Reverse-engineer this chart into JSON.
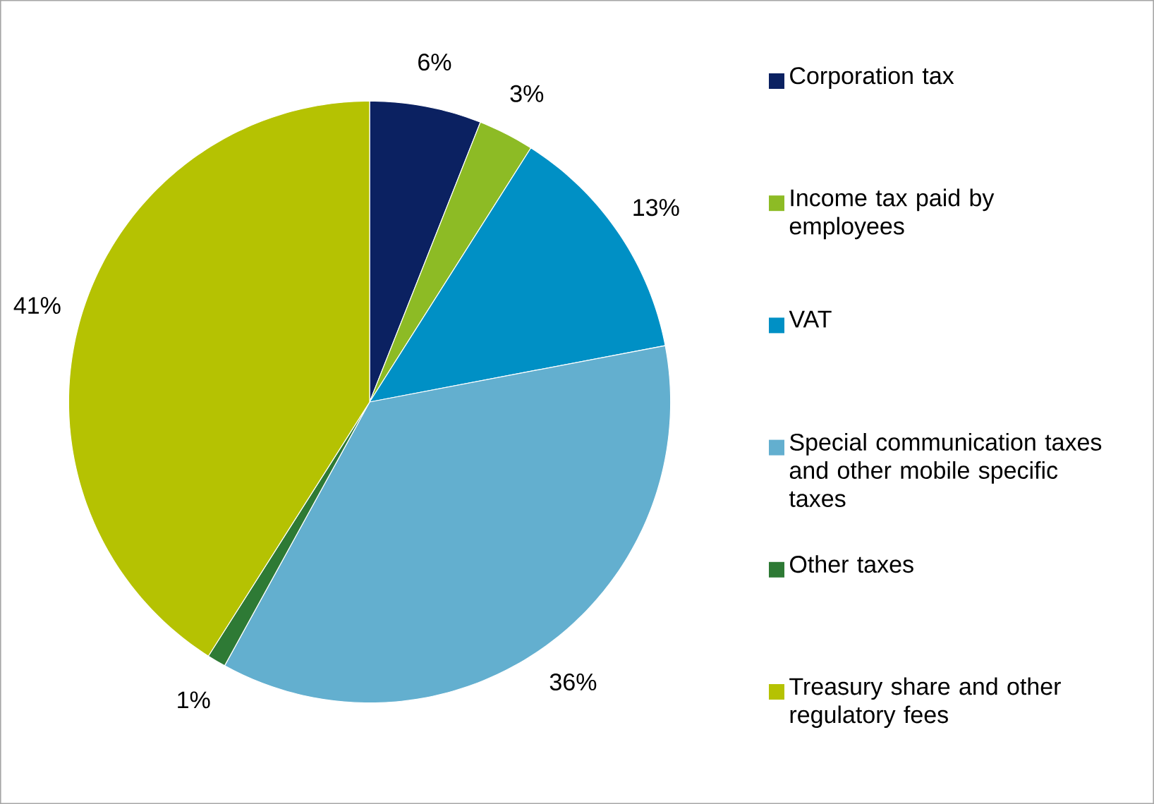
{
  "chart_data": {
    "type": "pie",
    "categories": [
      "Corporation tax",
      "Income tax paid by employees",
      "VAT",
      "Special communication taxes and other mobile specific taxes",
      "Other taxes",
      "Treasury share and other regulatory fees"
    ],
    "values": [
      6,
      3,
      13,
      36,
      1,
      41
    ],
    "value_labels": [
      "6%",
      "3%",
      "13%",
      "36%",
      "1%",
      "41%"
    ],
    "colors": [
      "#0b2161",
      "#8dbb25",
      "#0090c5",
      "#63afcf",
      "#2e7a35",
      "#b5c202"
    ],
    "legend": "right"
  }
}
